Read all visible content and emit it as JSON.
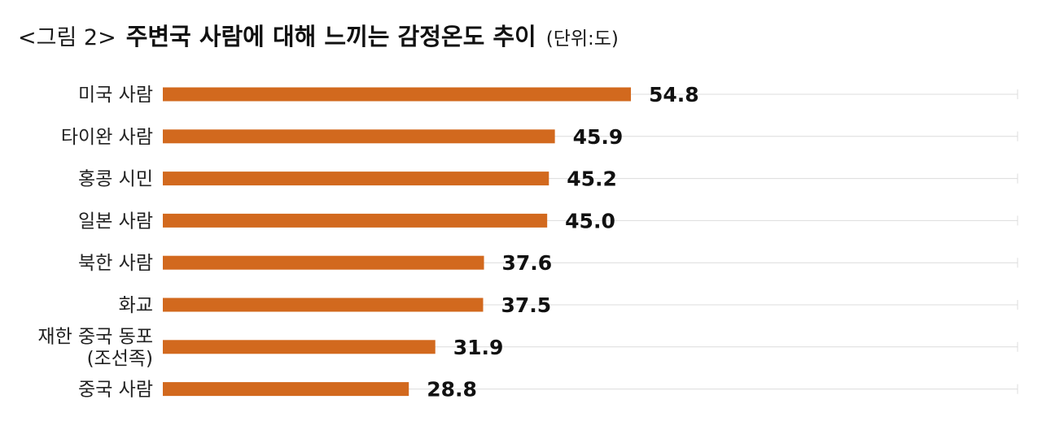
{
  "title": {
    "prefix": "<그림 2>",
    "main": "주변국 사람에 대해 느끼는 감정온도 추이",
    "unit": "(단위:도)"
  },
  "colors": {
    "bar": "#d2691e",
    "grid": "#dcdcdc",
    "text": "#222222"
  },
  "chart_data": {
    "type": "bar",
    "orientation": "horizontal",
    "title": "<그림 2> 주변국 사람에 대해 느끼는 감정온도 추이",
    "unit": "(단위:도)",
    "categories": [
      [
        "미국 사람"
      ],
      [
        "타이완 사람"
      ],
      [
        "홍콩 시민"
      ],
      [
        "일본 사람"
      ],
      [
        "북한 사람"
      ],
      [
        "화교"
      ],
      [
        "재한 중국 동포",
        "(조선족)"
      ],
      [
        "중국 사람"
      ]
    ],
    "values": [
      54.8,
      45.9,
      45.2,
      45.0,
      37.6,
      37.5,
      31.9,
      28.8
    ],
    "value_labels": [
      "54.8",
      "45.9",
      "45.2",
      "45.0",
      "37.6",
      "37.5",
      "31.9",
      "28.8"
    ],
    "xlim": [
      0,
      100
    ],
    "grid": true,
    "legend": "none"
  }
}
